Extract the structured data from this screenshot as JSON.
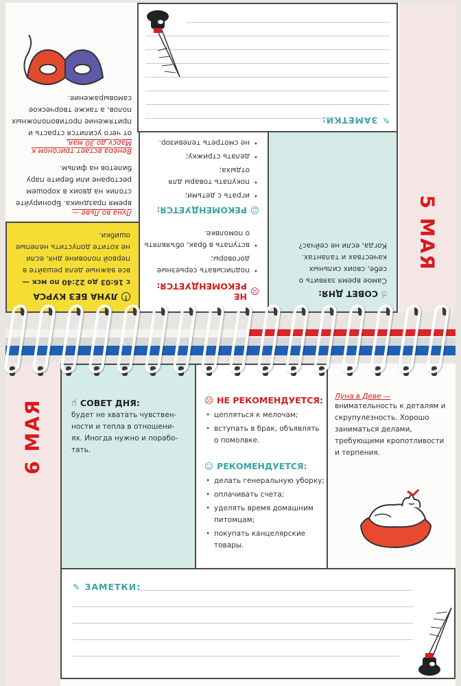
{
  "top_page": {
    "date": "5 МАЯ",
    "tip": {
      "title": "СОВЕТ ДНЯ:",
      "text": "Самое время заявить о себе, своих сильных качествах и талантах. Когда, если не сейчас?",
      "icon": "hand-pointing-icon"
    },
    "not_recommended": {
      "title": "НЕ РЕКОМЕНДУЕТСЯ:",
      "icon": "sad-face-icon",
      "items": [
        "подписывать серьезные договоры;",
        "вступать в брак, объявлять о помолвке."
      ]
    },
    "recommended": {
      "title": "РЕКОМЕНДУЕТСЯ:",
      "icon": "smile-face-icon",
      "items": [
        "играть с детьми;",
        "покупать товары для отдыха;",
        "делать стрижку;",
        "не смотреть телевизор."
      ]
    },
    "moon_off_course": {
      "title": "ЛУНА БЕЗ КУРСА",
      "icon": "info-circle-icon",
      "time": "с 16:03 до 22:40 по мск —",
      "text": "все важные дела решайте в первой половине дня, если не хотите допустить нелепые ошибки."
    },
    "moon_leo": {
      "title": "Луна во Льве —",
      "text": "время праздника. Бронируйте столик на двоих в хорошем ресторане или берите пару билетов на фильм."
    },
    "venus": {
      "title": "Венера встает тригоном к Марсу до 30 мая,",
      "text": "от чего усилится страсть и притяжение противоположных полов, а также творческое самовыражение."
    },
    "notes": {
      "title": "ЗАМЕТКИ:"
    }
  },
  "bottom_page": {
    "date": "6 МАЯ",
    "tip": {
      "title": "СОВЕТ ДНЯ:",
      "icon": "hand-pointing-icon",
      "text_lines": [
        "будет не хватать чувствен-",
        "ности и тепла в отношени-",
        "ях. Иногда нужно и порабо-",
        "тать."
      ]
    },
    "not_recommended": {
      "title": "НЕ РЕКОМЕНДУЕТСЯ:",
      "icon": "sad-face-icon",
      "items": [
        "цепляться к мелочам;",
        "вступать в брак, объявлять о помолвке."
      ]
    },
    "recommended": {
      "title": "РЕКОМЕНДУЕТСЯ:",
      "icon": "smile-face-icon",
      "items": [
        "делать генеральную уборку;",
        "оплачивать счета;",
        "уделять время домашним питомцам;",
        "покупать канцелярские товары."
      ]
    },
    "moon_virgo": {
      "title": "Луна в Деве —",
      "text": "внимательность к деталям и скрупулезность. Хорошо заниматься делами, требующими кропотливости и терпения."
    },
    "notes": {
      "title": "ЗАМЕТКИ:"
    }
  },
  "colors": {
    "accent_red": "#d8191c",
    "teal": "#3aa4a8",
    "mint": "#d5ebe8",
    "yellow": "#f6dd36",
    "tab_red": "#d9262a",
    "tab_blue": "#1f5fb4"
  }
}
